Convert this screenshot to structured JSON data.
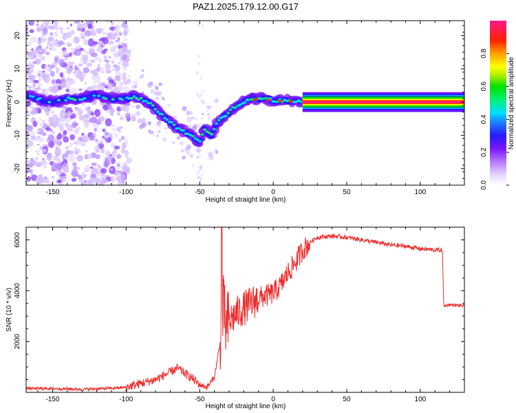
{
  "title": "PAZ1.2025.179.12.00.G17",
  "chart_data": [
    {
      "type": "heatmap",
      "xlabel": "Height of straight line (km)",
      "ylabel": "Frequency (Hz)",
      "xlim": [
        -168,
        130
      ],
      "ylim": [
        -25,
        24.5
      ],
      "xticks": [
        -150,
        -100,
        -50,
        0,
        50,
        100
      ],
      "yticks": [
        -20,
        -10,
        0,
        10,
        20
      ],
      "ridge_x": [
        -168,
        -160,
        -150,
        -140,
        -130,
        -120,
        -110,
        -100,
        -95,
        -90,
        -85,
        -80,
        -75,
        -70,
        -65,
        -60,
        -55,
        -50,
        -47,
        -45,
        -42,
        -40,
        -38,
        -35,
        -30,
        -25,
        -20,
        -15,
        -10,
        -5,
        0,
        5,
        10,
        15,
        20,
        130
      ],
      "ridge_y": [
        2,
        1,
        0,
        1,
        1,
        2,
        1,
        1,
        1.5,
        1,
        0,
        -2,
        -4,
        -6,
        -8,
        -9,
        -10,
        -12,
        -8,
        -9,
        -10,
        -8,
        -6,
        -5,
        -3,
        -1,
        0,
        1,
        1,
        1,
        0.5,
        0.5,
        0.3,
        0.2,
        0,
        0
      ],
      "colorbar": {
        "label": "Normalized spectral amplitude",
        "ticks": [
          0.0,
          0.2,
          0.4,
          0.6,
          0.8
        ]
      }
    },
    {
      "type": "line",
      "xlabel": "Height of straight line (km)",
      "ylabel": "SNR (10 * v/v)",
      "xlim": [
        -168,
        130
      ],
      "ylim": [
        0,
        6500
      ],
      "xticks": [
        -150,
        -100,
        -50,
        0,
        50,
        100
      ],
      "yticks": [
        2000,
        4000,
        6000
      ],
      "color": "#ee2a2a",
      "x": [
        -168,
        -150,
        -130,
        -110,
        -100,
        -90,
        -80,
        -70,
        -65,
        -60,
        -55,
        -50,
        -45,
        -40,
        -36,
        -34,
        -32,
        -30,
        -25,
        -20,
        -15,
        -10,
        -5,
        0,
        5,
        10,
        15,
        20,
        25,
        30,
        40,
        50,
        60,
        70,
        80,
        90,
        100,
        110,
        115,
        116,
        120,
        130
      ],
      "y": [
        150,
        150,
        120,
        160,
        200,
        350,
        500,
        800,
        950,
        750,
        550,
        300,
        200,
        600,
        2000,
        3300,
        2500,
        2800,
        3100,
        3300,
        3500,
        3700,
        3800,
        3900,
        4200,
        4700,
        5100,
        5600,
        5900,
        6100,
        6150,
        6100,
        6000,
        5900,
        5800,
        5750,
        5650,
        5600,
        5600,
        3400,
        3450,
        3400
      ]
    }
  ]
}
